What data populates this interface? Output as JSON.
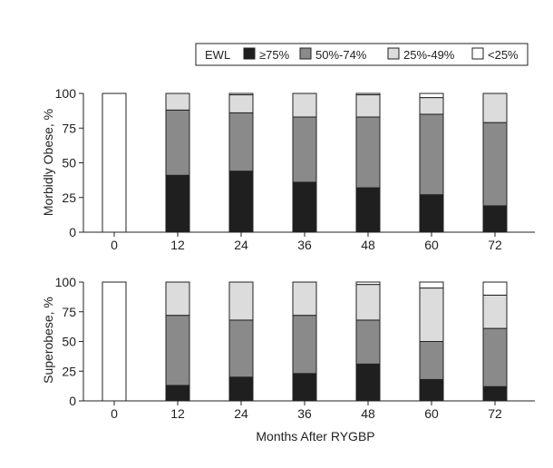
{
  "chart_data": [
    {
      "type": "bar",
      "stacked": true,
      "categories": [
        "0",
        "12",
        "24",
        "36",
        "48",
        "60",
        "72"
      ],
      "ylabel": "Morbidly Obese, %",
      "ylim": [
        0,
        100
      ],
      "yticks": [
        "0",
        "25",
        "50",
        "75",
        "100"
      ],
      "grid": false,
      "series": [
        {
          "name": "≥75%",
          "color": "#1f1f1f",
          "values": [
            0,
            41,
            44,
            36,
            32,
            27,
            19
          ]
        },
        {
          "name": "50%-74%",
          "color": "#8a8a8a",
          "values": [
            0,
            47,
            42,
            47,
            51,
            58,
            60
          ]
        },
        {
          "name": "25%-49%",
          "color": "#dcdcdc",
          "values": [
            0,
            12,
            13,
            17,
            16,
            12,
            21
          ]
        },
        {
          "name": "<25%",
          "color": "#ffffff",
          "values": [
            100,
            0,
            1,
            0,
            1,
            3,
            0
          ]
        }
      ]
    },
    {
      "type": "bar",
      "stacked": true,
      "categories": [
        "0",
        "12",
        "24",
        "36",
        "48",
        "60",
        "72"
      ],
      "ylabel": "Superobese, %",
      "xlabel": "Months After RYGBP",
      "ylim": [
        0,
        100
      ],
      "yticks": [
        "0",
        "25",
        "50",
        "75",
        "100"
      ],
      "grid": false,
      "series": [
        {
          "name": "≥75%",
          "color": "#1f1f1f",
          "values": [
            0,
            13,
            20,
            23,
            31,
            18,
            12
          ]
        },
        {
          "name": "50%-74%",
          "color": "#8a8a8a",
          "values": [
            0,
            59,
            48,
            49,
            37,
            32,
            49
          ]
        },
        {
          "name": "25%-49%",
          "color": "#dcdcdc",
          "values": [
            0,
            28,
            32,
            28,
            30,
            45,
            28
          ]
        },
        {
          "name": "<25%",
          "color": "#ffffff",
          "values": [
            100,
            0,
            0,
            0,
            2,
            5,
            11
          ]
        }
      ]
    }
  ],
  "legend": {
    "title": "EWL",
    "placement": "top-right",
    "items": [
      "≥75%",
      "50%-74%",
      "25%-49%",
      "<25%"
    ]
  }
}
